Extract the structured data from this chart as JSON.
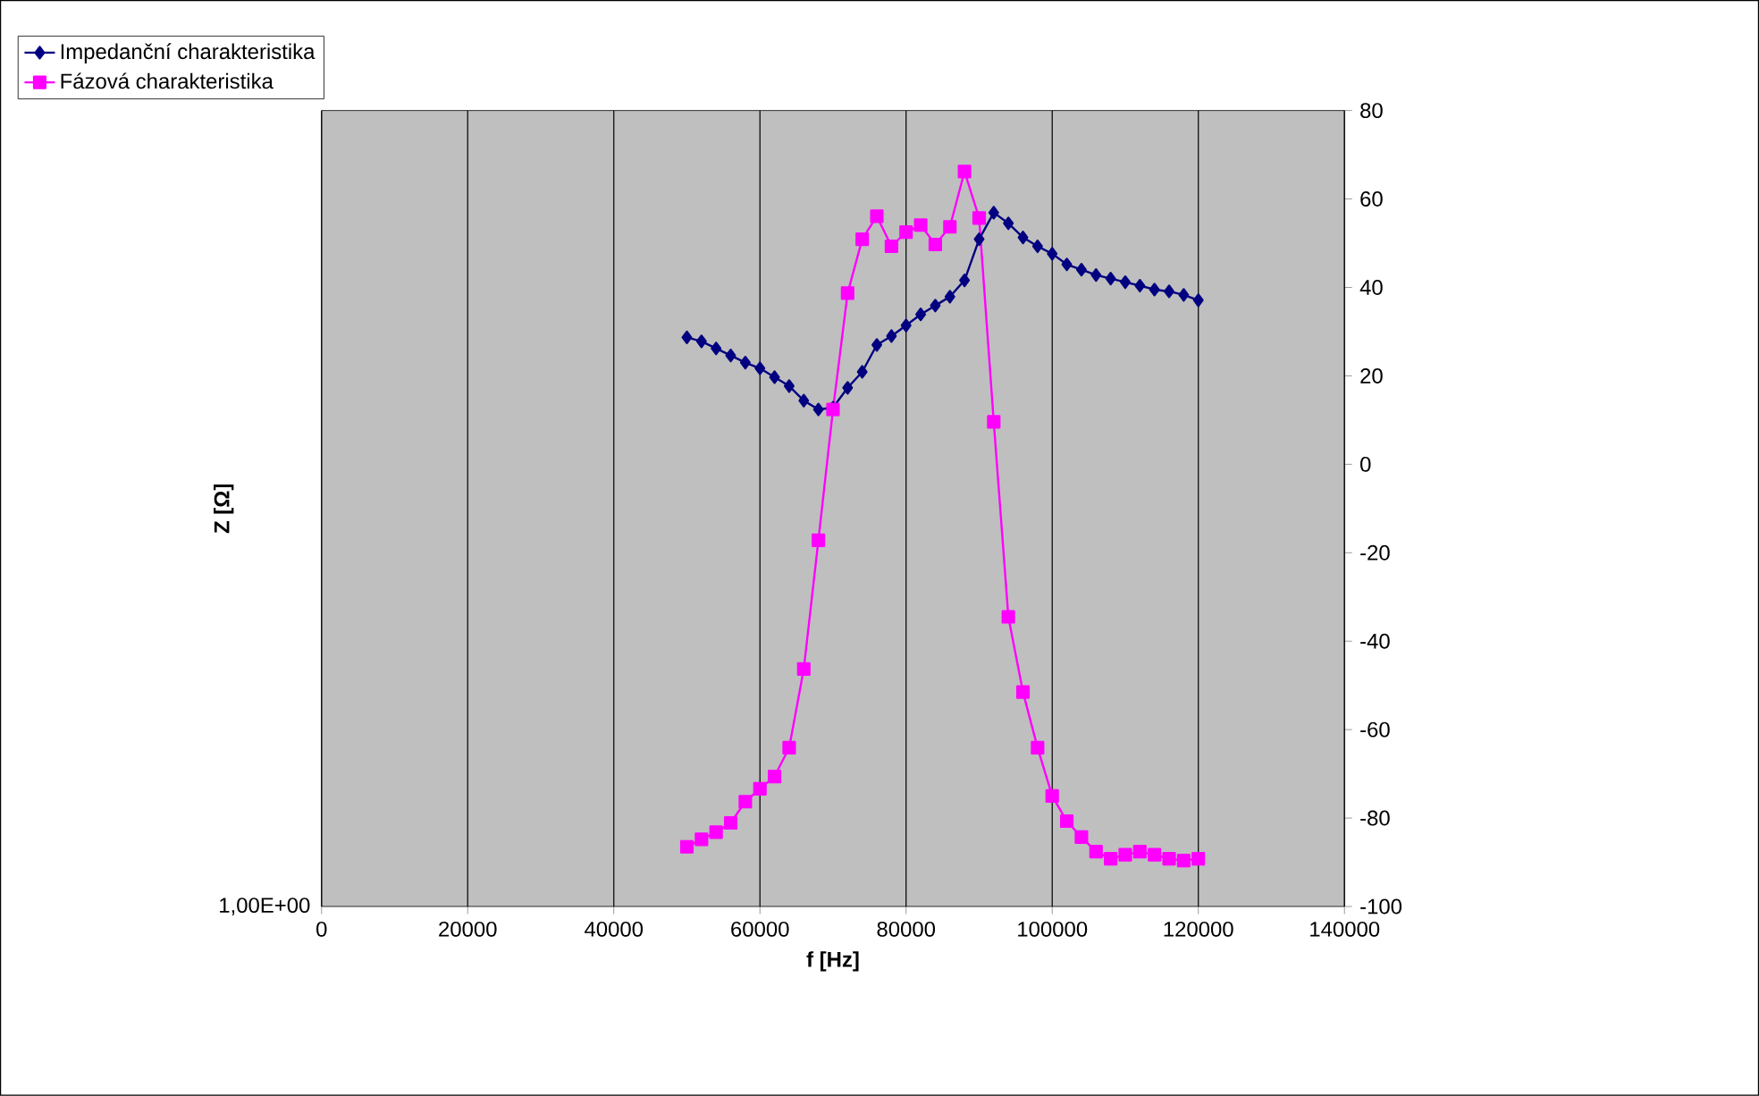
{
  "chart_data": {
    "type": "line",
    "xlabel": "f [Hz]",
    "ylabel": "Z [Ω]",
    "x": [
      50000,
      52000,
      54000,
      56000,
      58000,
      60000,
      62000,
      64000,
      66000,
      68000,
      70000,
      72000,
      74000,
      76000,
      78000,
      80000,
      82000,
      84000,
      86000,
      88000,
      90000,
      92000,
      94000,
      96000,
      98000,
      100000,
      102000,
      104000,
      106000,
      108000,
      110000,
      112000,
      114000,
      116000,
      118000,
      120000
    ],
    "series": [
      {
        "name": "Impedanční charakteristika",
        "color": "#000080",
        "axis": "y2",
        "marker": "diamond",
        "values": [
          28.7,
          27.8,
          26.2,
          24.6,
          23,
          21.7,
          19.7,
          17.7,
          14.4,
          12.4,
          12.8,
          17.3,
          20.9,
          27,
          29,
          31.4,
          33.9,
          35.9,
          37.9,
          41.6,
          50.9,
          56.9,
          54.5,
          51.3,
          49.3,
          47.6,
          45.2,
          44,
          42.8,
          42,
          41.2,
          40.4,
          39.5,
          39.1,
          38.3,
          37.1
        ]
      },
      {
        "name": "Fázová charakteristika",
        "color": "#ff00ff",
        "axis": "y2",
        "marker": "square",
        "values": [
          -86.5,
          -84.8,
          -83.2,
          -81.1,
          -76.3,
          -73.4,
          -70.6,
          -64.1,
          -46.3,
          -17.2,
          12.4,
          38.7,
          50.9,
          56.1,
          49.3,
          52.5,
          54.1,
          49.7,
          53.7,
          66.2,
          55.7,
          9.6,
          -34.5,
          -51.5,
          -64.1,
          -75,
          -80.7,
          -84.3,
          -87.6,
          -89.2,
          -88.3,
          -87.6,
          -88.3,
          -89.2,
          -89.6,
          -89.2
        ]
      }
    ],
    "xlim": [
      0,
      140000
    ],
    "xticks": [
      0,
      20000,
      40000,
      60000,
      80000,
      100000,
      120000,
      140000
    ],
    "annotations": [
      "1,00E+00"
    ],
    "y2lim": [
      -100,
      80
    ],
    "y2ticks": [
      -100,
      -80,
      -60,
      -40,
      -20,
      0,
      20,
      40,
      60,
      80
    ],
    "grid": "x",
    "legend": "top left",
    "line_style": "solid"
  }
}
